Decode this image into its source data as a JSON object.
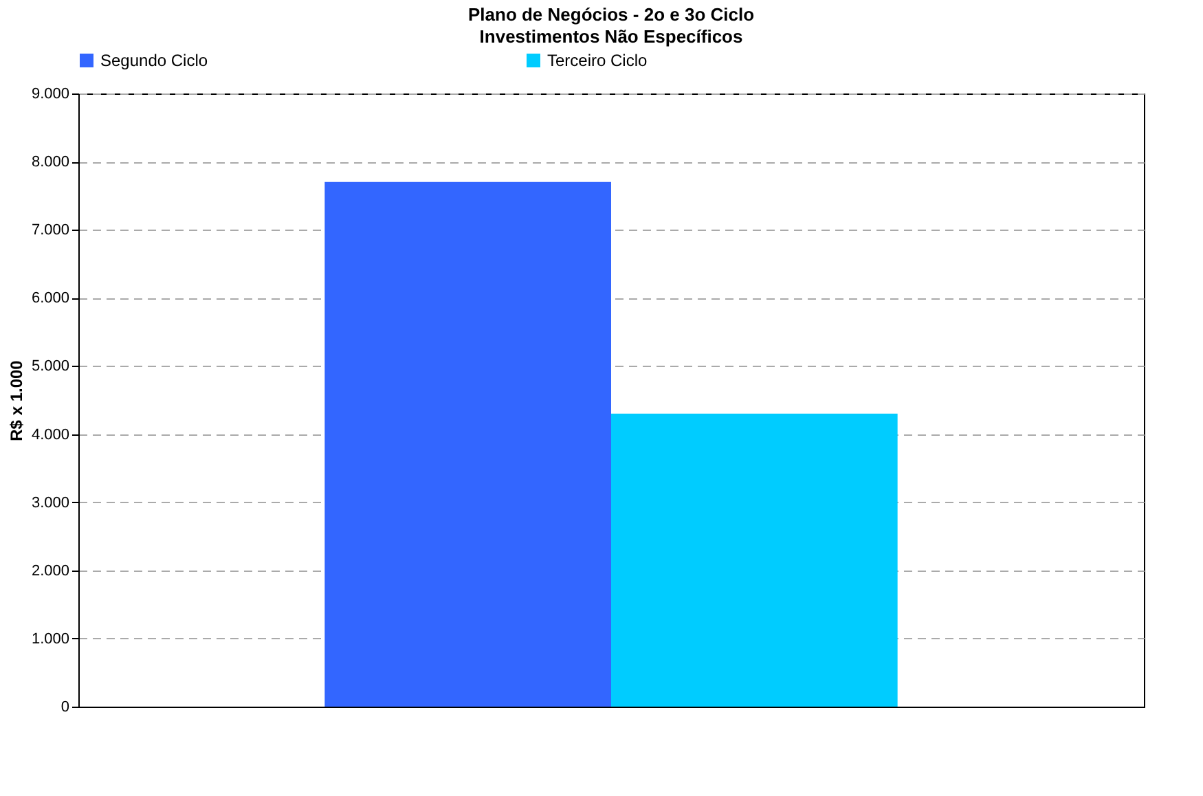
{
  "chart_data": {
    "type": "bar",
    "title": "Plano de Negócios - 2o e 3o Ciclo",
    "subtitle": "Investimentos Não Específicos",
    "ylabel": "R$ x 1.000",
    "categories": [
      null
    ],
    "series": [
      {
        "name": "Segundo Ciclo",
        "color": "#3366ff",
        "values": [
          7700
        ]
      },
      {
        "name": "Terceiro Ciclo",
        "color": "#00ccff",
        "values": [
          4300
        ]
      }
    ],
    "ylim": [
      0,
      9000
    ],
    "yticks": [
      0,
      {
        "value": 1000,
        "label": "1.000"
      },
      {
        "value": 2000,
        "label": "2.000"
      },
      {
        "value": 3000,
        "label": "3.000"
      },
      {
        "value": 4000,
        "label": "4.000"
      },
      {
        "value": 5000,
        "label": "5.000"
      },
      {
        "value": 6000,
        "label": "6.000"
      },
      {
        "value": 7000,
        "label": "7.000"
      },
      {
        "value": 8000,
        "label": "8.000"
      },
      {
        "value": 9000,
        "label": "9.000"
      }
    ],
    "grid": "y",
    "legend": "top",
    "tick_labels": "y"
  }
}
